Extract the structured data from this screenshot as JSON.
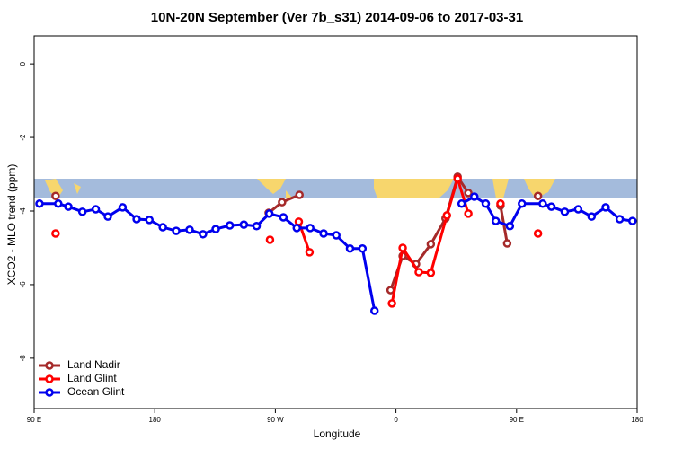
{
  "chart_data": {
    "type": "line",
    "title": "10N-20N September (Ver 7b_s31)   2014-09-06 to 2017-03-31",
    "x_label": "Longitude",
    "y_label": "XCO2 - MLO trend (ppm)",
    "xlim": [
      90,
      540
    ],
    "xticks": [
      {
        "value": 90,
        "label": "90 E"
      },
      180,
      {
        "value": 270,
        "label": "90 W"
      },
      {
        "value": 360,
        "label": "0"
      },
      {
        "value": 450,
        "label": "90 E"
      },
      {
        "value": 540,
        "label": "180"
      }
    ],
    "ylim": [
      -9.37,
      0.76
    ],
    "yticks": [
      0,
      -2,
      -4,
      -6,
      -8
    ],
    "legend": "bottom-left",
    "series": [
      {
        "name": "Land Nadir",
        "color": "#a52a2a",
        "x": [
          106,
          180,
          265,
          275,
          288,
          320,
          356,
          365,
          375,
          386,
          397,
          406,
          414,
          425,
          438,
          443,
          455,
          466
        ],
        "values": [
          -3.59,
          null,
          -4.05,
          -3.76,
          -3.56,
          null,
          -6.15,
          -5.22,
          -5.44,
          -4.9,
          -4.2,
          -3.07,
          -3.51,
          null,
          -3.85,
          -4.88,
          null,
          -3.59
        ]
      },
      {
        "name": "Land Glint",
        "color": "#ff0000",
        "x": [
          106,
          180,
          266,
          277,
          287.5,
          295.5,
          330,
          357,
          365,
          377,
          386,
          398,
          406,
          414,
          425,
          438,
          455,
          466
        ],
        "values": [
          -4.61,
          null,
          -4.78,
          null,
          -4.29,
          -5.12,
          null,
          -6.51,
          -5.0,
          -5.66,
          -5.68,
          -4.12,
          -3.12,
          -4.07,
          null,
          -3.8,
          null,
          -4.61
        ]
      },
      {
        "name": "Ocean Glint",
        "color": "#0000ee",
        "x": [
          94,
          108,
          115.5,
          126,
          136,
          145,
          156,
          166.5,
          176,
          186,
          196,
          206,
          216,
          225.5,
          236,
          246.5,
          256,
          265.5,
          276,
          286,
          296,
          306,
          315.5,
          325.7,
          335,
          344,
          380,
          409,
          418.5,
          427,
          434.5,
          445,
          454,
          469.5,
          476,
          486,
          496,
          506,
          516.5,
          527,
          536.5
        ],
        "values": [
          -3.8,
          -3.8,
          -3.88,
          -4.02,
          -3.95,
          -4.15,
          -3.9,
          -4.22,
          -4.24,
          -4.44,
          -4.54,
          -4.51,
          -4.63,
          -4.49,
          -4.39,
          -4.37,
          -4.41,
          -4.07,
          -4.17,
          -4.46,
          -4.46,
          -4.61,
          -4.66,
          -5.02,
          -5.02,
          -6.71,
          null,
          -3.8,
          -3.61,
          -3.8,
          -4.27,
          -4.41,
          -3.8,
          -3.8,
          -3.88,
          -4.02,
          -3.95,
          -4.15,
          -3.9,
          -4.22,
          -4.27
        ]
      }
    ]
  }
}
